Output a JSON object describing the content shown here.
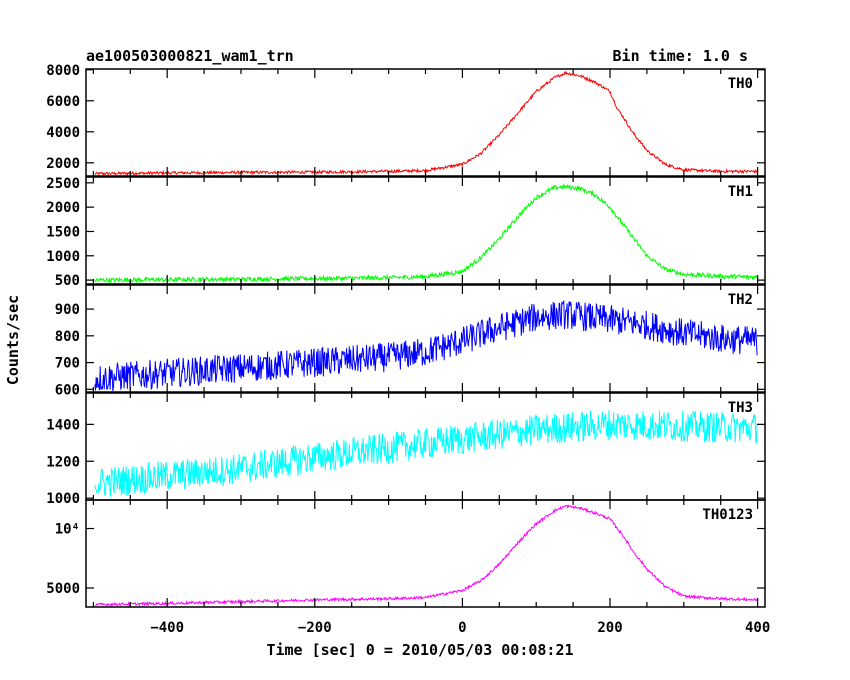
{
  "chart_data": {
    "type": "line",
    "title": "ae100503000821_wam1_trn",
    "subtitle": "Bin time: 1.0 s",
    "xlabel": "Time [sec] 0 = 2010/05/03 00:08:21",
    "ylabel": "Counts/sec",
    "xlim": [
      -510,
      410
    ],
    "x_ticks": [
      -400,
      -200,
      0,
      200,
      400
    ],
    "x_tick_labels": [
      "−400",
      "−200",
      "0",
      "200",
      "400"
    ],
    "grid": false,
    "panels": [
      {
        "name": "TH0",
        "color": "#ff0000",
        "ylim": [
          1150,
          8050
        ],
        "y_ticks": [
          2000,
          4000,
          6000,
          8000
        ],
        "y_tick_labels": [
          "2000",
          "4000",
          "6000",
          "8000"
        ],
        "x": [
          -500,
          -400,
          -300,
          -200,
          -100,
          -50,
          0,
          25,
          50,
          75,
          100,
          125,
          140,
          160,
          180,
          200,
          210,
          220,
          230,
          250,
          275,
          300,
          350,
          400
        ],
        "y": [
          1300,
          1350,
          1380,
          1400,
          1450,
          1500,
          1900,
          2600,
          3800,
          5200,
          6600,
          7500,
          7800,
          7600,
          7200,
          6600,
          5500,
          4800,
          4000,
          2800,
          1900,
          1550,
          1450,
          1450
        ],
        "noise": 90
      },
      {
        "name": "TH1",
        "color": "#00ff00",
        "ylim": [
          420,
          2620
        ],
        "y_ticks": [
          500,
          1000,
          1500,
          2000,
          2500
        ],
        "y_tick_labels": [
          "500",
          "1000",
          "1500",
          "2000",
          "2500"
        ],
        "x": [
          -500,
          -400,
          -300,
          -200,
          -100,
          -50,
          0,
          25,
          50,
          75,
          100,
          125,
          140,
          160,
          180,
          200,
          220,
          250,
          275,
          300,
          350,
          400
        ],
        "y": [
          500,
          510,
          520,
          530,
          550,
          570,
          680,
          960,
          1350,
          1800,
          2200,
          2400,
          2420,
          2380,
          2250,
          2000,
          1600,
          1000,
          720,
          620,
          580,
          560
        ],
        "noise": 45
      },
      {
        "name": "TH2",
        "color": "#0000ff",
        "ylim": [
          590,
          990
        ],
        "y_ticks": [
          600,
          700,
          800,
          900
        ],
        "y_tick_labels": [
          "600",
          "700",
          "800",
          "900"
        ],
        "x": [
          -500,
          -400,
          -300,
          -200,
          -100,
          -50,
          0,
          50,
          100,
          140,
          200,
          250,
          300,
          350,
          400
        ],
        "y": [
          640,
          660,
          680,
          700,
          720,
          740,
          780,
          830,
          870,
          880,
          860,
          840,
          810,
          790,
          780
        ],
        "noise": 55
      },
      {
        "name": "TH3",
        "color": "#00ffff",
        "ylim": [
          990,
          1570
        ],
        "y_ticks": [
          1000,
          1200,
          1400
        ],
        "y_tick_labels": [
          "1000",
          "1200",
          "1400"
        ],
        "x": [
          -500,
          -400,
          -300,
          -200,
          -100,
          0,
          100,
          200,
          300,
          400
        ],
        "y": [
          1080,
          1120,
          1160,
          1220,
          1270,
          1320,
          1370,
          1400,
          1390,
          1380
        ],
        "noise": 85
      },
      {
        "name": "TH0123",
        "color": "#ff00ff",
        "ylim": [
          3400,
          12400
        ],
        "y_ticks": [
          5000,
          10000
        ],
        "y_tick_labels": [
          "5000",
          "10⁴"
        ],
        "x": [
          -500,
          -400,
          -300,
          -200,
          -100,
          -50,
          0,
          25,
          50,
          75,
          100,
          125,
          140,
          160,
          180,
          200,
          210,
          220,
          230,
          250,
          275,
          300,
          350,
          400
        ],
        "y": [
          3600,
          3700,
          3850,
          4000,
          4100,
          4200,
          4800,
          5600,
          7000,
          8800,
          10400,
          11500,
          11900,
          11700,
          11300,
          10800,
          10000,
          9200,
          8200,
          6600,
          5100,
          4300,
          4100,
          4000
        ],
        "noise": 110
      }
    ]
  }
}
